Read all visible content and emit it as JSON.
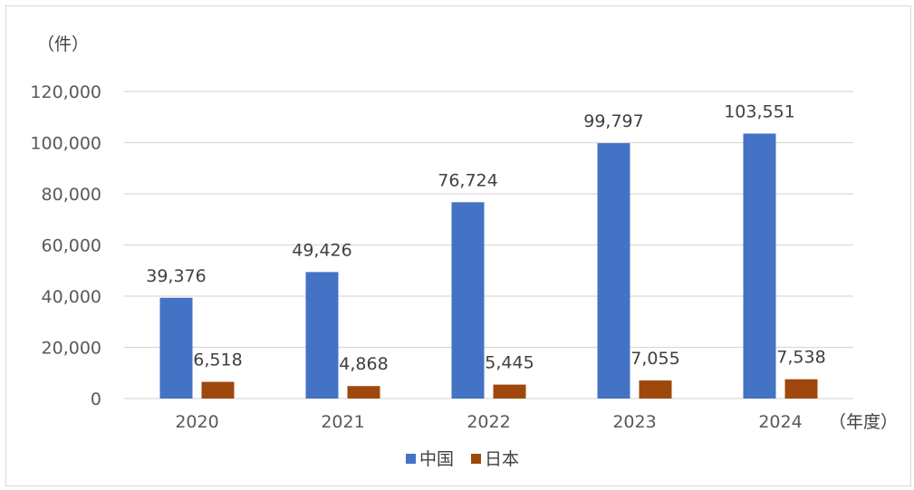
{
  "chart_data": {
    "type": "bar",
    "y_unit_label": "（件）",
    "x_unit_label": "（年度）",
    "categories": [
      "2020",
      "2021",
      "2022",
      "2023",
      "2024"
    ],
    "series": [
      {
        "name": "中国",
        "color": "#4472C4",
        "values": [
          39376,
          49426,
          76724,
          99797,
          103551
        ],
        "labels": [
          "39,376",
          "49,426",
          "76,724",
          "99,797",
          "103,551"
        ]
      },
      {
        "name": "日本",
        "color": "#9E480E",
        "values": [
          6518,
          4868,
          5445,
          7055,
          7538
        ],
        "labels": [
          "6,518",
          "4,868",
          "5,445",
          "7,055",
          "7,538"
        ]
      }
    ],
    "ylim": [
      0,
      120000
    ],
    "yticks": [
      0,
      20000,
      40000,
      60000,
      80000,
      100000,
      120000
    ],
    "ytick_labels": [
      "0",
      "20,000",
      "40,000",
      "60,000",
      "80,000",
      "100,000",
      "120,000"
    ],
    "grid": true,
    "legend_position": "bottom",
    "gridline_color": "#d9d9d9"
  }
}
